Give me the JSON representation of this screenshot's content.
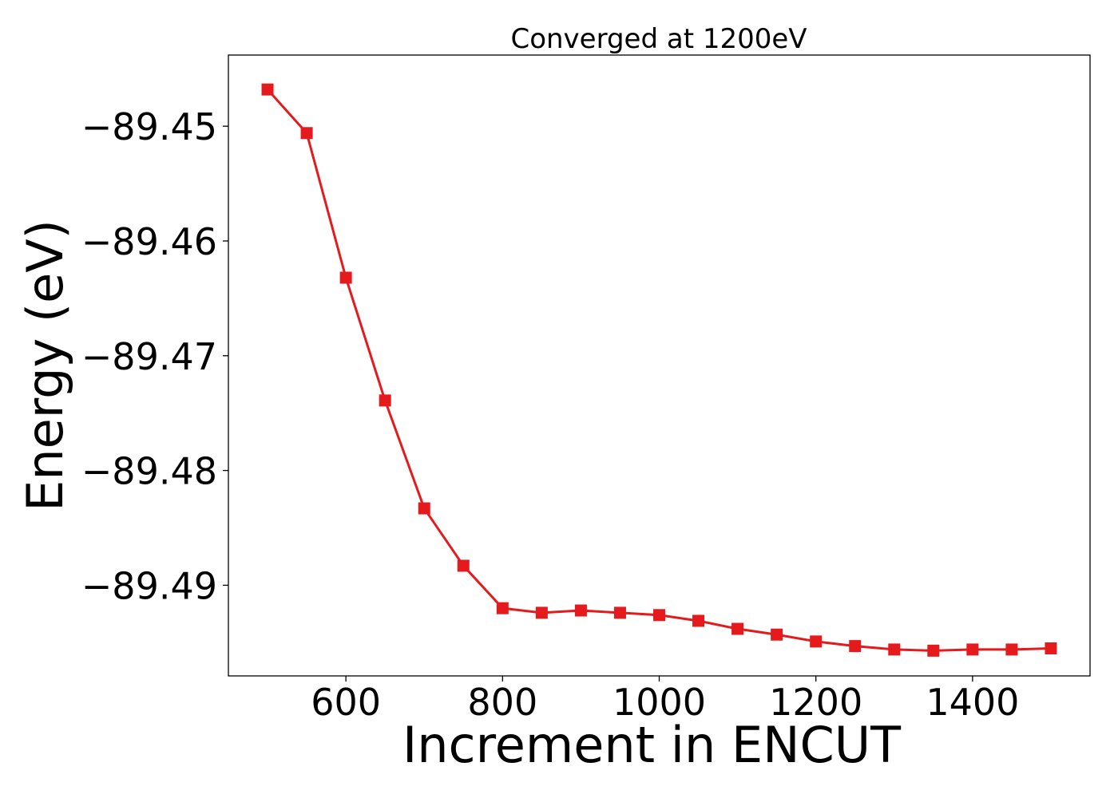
{
  "chart_data": {
    "type": "line",
    "title": "Converged at 1200eV",
    "xlabel": "Increment in ENCUT",
    "ylabel": "Energy (eV)",
    "xlim": [
      450,
      1550
    ],
    "ylim": [
      -89.4979,
      -89.4438
    ],
    "xticks": [
      600,
      800,
      1000,
      1200,
      1400
    ],
    "xtick_labels": [
      "600",
      "800",
      "1000",
      "1200",
      "1400"
    ],
    "yticks": [
      -89.45,
      -89.46,
      -89.47,
      -89.48,
      -89.49
    ],
    "ytick_labels": [
      "−89.45",
      "−89.46",
      "−89.47",
      "−89.48",
      "−89.49"
    ],
    "grid": false,
    "legend": "none",
    "series": [
      {
        "color": "#e41a1c",
        "marker": "square",
        "x": [
          500,
          550,
          600,
          650,
          700,
          750,
          800,
          850,
          900,
          950,
          1000,
          1050,
          1100,
          1150,
          1200,
          1250,
          1300,
          1350,
          1400,
          1450,
          1500
        ],
        "y": [
          -89.4468,
          -89.4506,
          -89.4632,
          -89.4739,
          -89.4833,
          -89.4883,
          -89.492,
          -89.4924,
          -89.4922,
          -89.4924,
          -89.4926,
          -89.4931,
          -89.4938,
          -89.4943,
          -89.4949,
          -89.4953,
          -89.4956,
          -89.4957,
          -89.4956,
          -89.4956,
          -89.4955
        ]
      }
    ]
  }
}
